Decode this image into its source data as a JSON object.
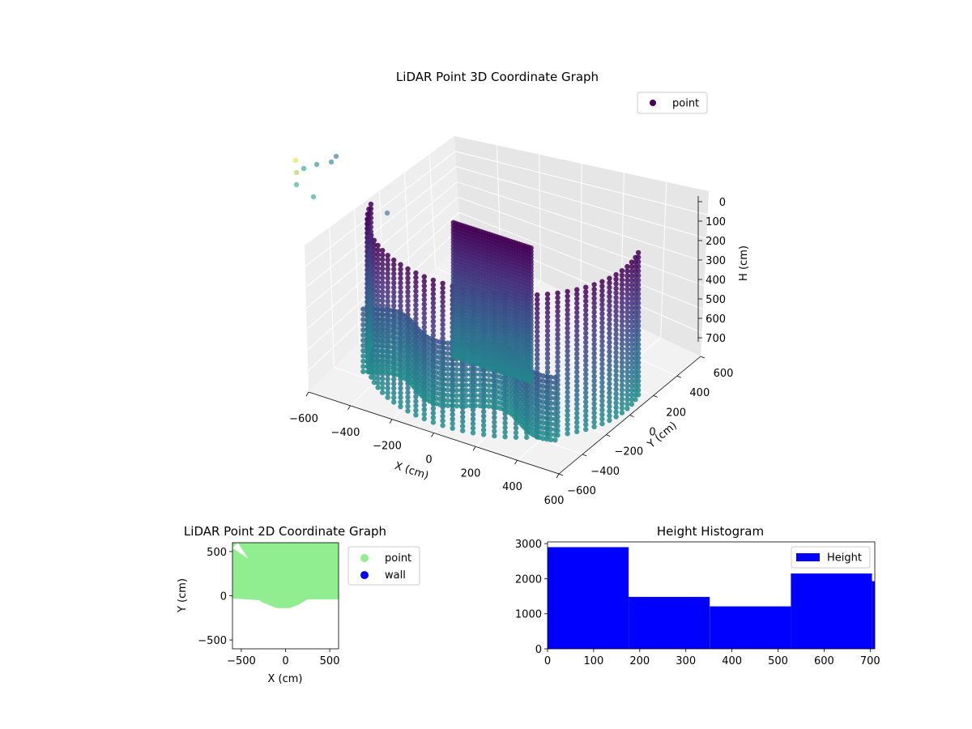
{
  "chart_data": [
    {
      "type": "scatter",
      "projection": "3d",
      "title": "LiDAR Point 3D Coordinate Graph",
      "xlabel": "X (cm)",
      "ylabel": "Y (cm)",
      "zlabel": "H (cm)",
      "xticks": [
        "−600",
        "−400",
        "−200",
        "0",
        "200",
        "400",
        "600"
      ],
      "yticks": [
        "−600",
        "−400",
        "−200",
        "0",
        "200",
        "400",
        "600"
      ],
      "zticks": [
        "0",
        "100",
        "200",
        "300",
        "400",
        "500",
        "600",
        "700"
      ],
      "xlim": [
        -600,
        600
      ],
      "ylim": [
        -600,
        600
      ],
      "zlim": [
        0,
        700
      ],
      "z_inverted": true,
      "colormap": "viridis",
      "series": [
        {
          "name": "point",
          "color": "#440154"
        }
      ],
      "legend_position": "top-right",
      "grid": true
    },
    {
      "type": "scatter",
      "title": "LiDAR Point 2D Coordinate Graph",
      "xlabel": "X (cm)",
      "ylabel": "Y (cm)",
      "xticks": [
        "−500",
        "0",
        "500"
      ],
      "yticks": [
        "−500",
        "0",
        "500"
      ],
      "xlim": [
        -600,
        600
      ],
      "ylim": [
        -600,
        600
      ],
      "series": [
        {
          "name": "point",
          "color": "#90ee90"
        },
        {
          "name": "wall",
          "color": "#0000ff"
        }
      ],
      "point_region": [
        [
          -600,
          600
        ],
        [
          -600,
          -30
        ],
        [
          -300,
          -50
        ],
        [
          -250,
          -80
        ],
        [
          -100,
          -140
        ],
        [
          50,
          -140
        ],
        [
          150,
          -100
        ],
        [
          250,
          -40
        ],
        [
          600,
          -40
        ],
        [
          600,
          600
        ]
      ],
      "legend_position": "outside-right",
      "grid": false
    },
    {
      "type": "bar",
      "title": "Height Histogram",
      "xticks": [
        "0",
        "100",
        "200",
        "300",
        "400",
        "500",
        "600",
        "700"
      ],
      "yticks": [
        "0",
        "1000",
        "2000",
        "3000"
      ],
      "xlim": [
        0,
        710
      ],
      "ylim": [
        0,
        3050
      ],
      "bins": [
        {
          "start": 0,
          "end": 176,
          "count": 2900
        },
        {
          "start": 176,
          "end": 352,
          "count": 1480
        },
        {
          "start": 352,
          "end": 528,
          "count": 1210
        },
        {
          "start": 528,
          "end": 704,
          "count": 2150
        },
        {
          "start": 704,
          "end": 710,
          "count": 1930
        }
      ],
      "series": [
        {
          "name": "Height",
          "color": "#0000ff"
        }
      ],
      "legend_position": "top-right",
      "grid": false
    }
  ]
}
